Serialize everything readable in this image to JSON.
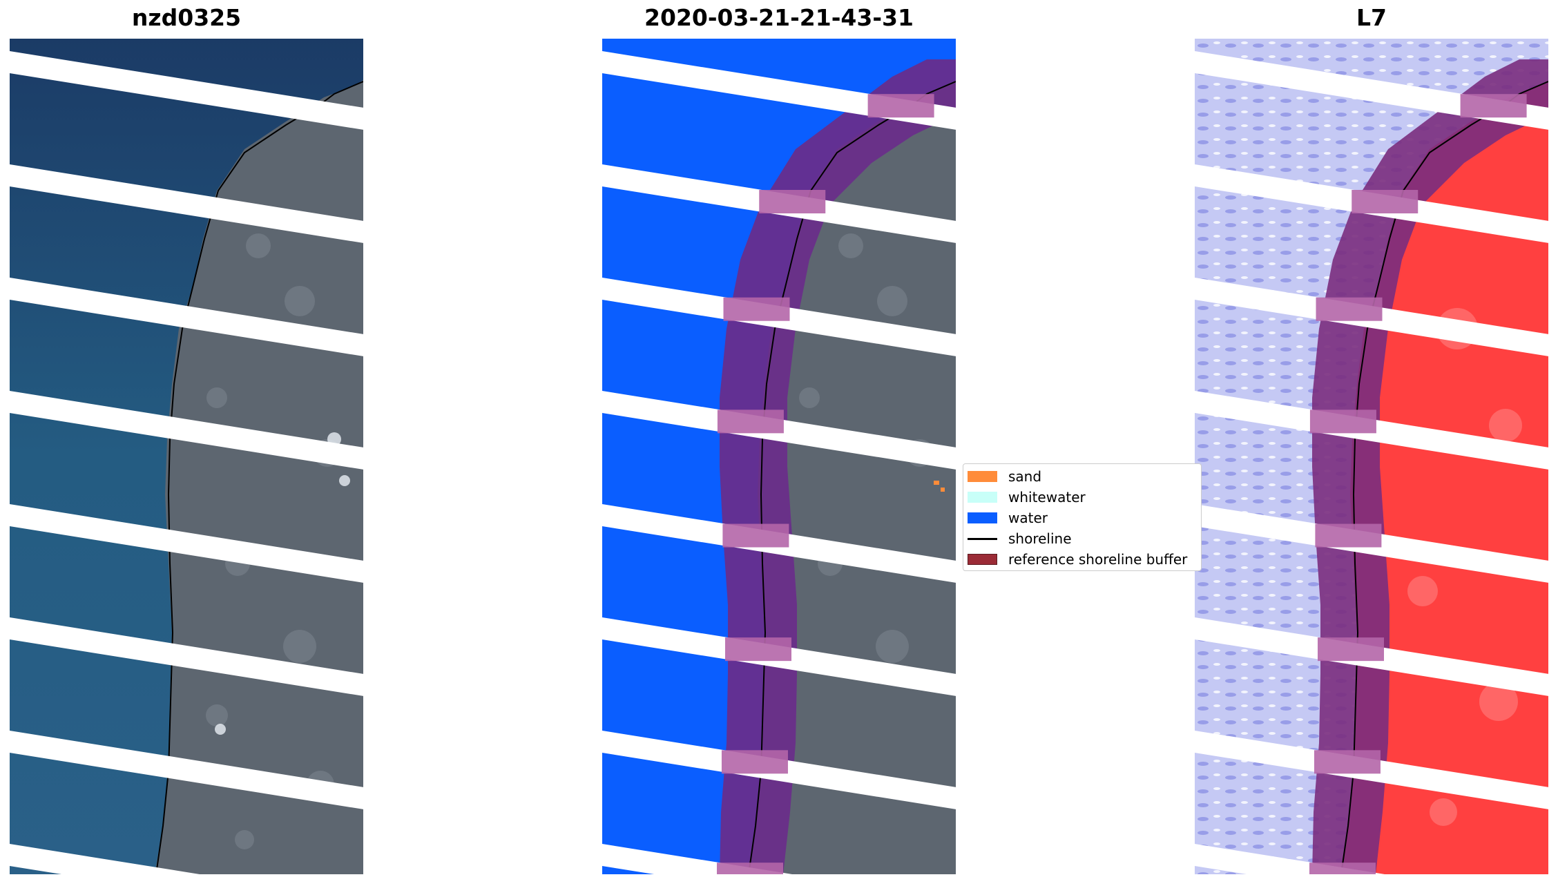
{
  "panels": [
    {
      "title": "nzd0325"
    },
    {
      "title": "2020-03-21-21-43-31"
    },
    {
      "title": "L7"
    }
  ],
  "legend": {
    "items": [
      {
        "label": "sand",
        "color": "#ff8c3a"
      },
      {
        "label": "whitewater",
        "color": "#c8fff8"
      },
      {
        "label": "water",
        "color": "#0a5eff"
      },
      {
        "label": "shoreline",
        "color": "#000000"
      },
      {
        "label": "reference shoreline buffer",
        "color": "#9b2b36"
      }
    ]
  },
  "colors": {
    "sea_rgb": "#1f4f78",
    "land_rgb": "#5e6670",
    "water_class": "#0a5eff",
    "buffer": "#6a2d8a",
    "mndwi_water": "#a9aef0",
    "mndwi_land": "#ff3030"
  }
}
